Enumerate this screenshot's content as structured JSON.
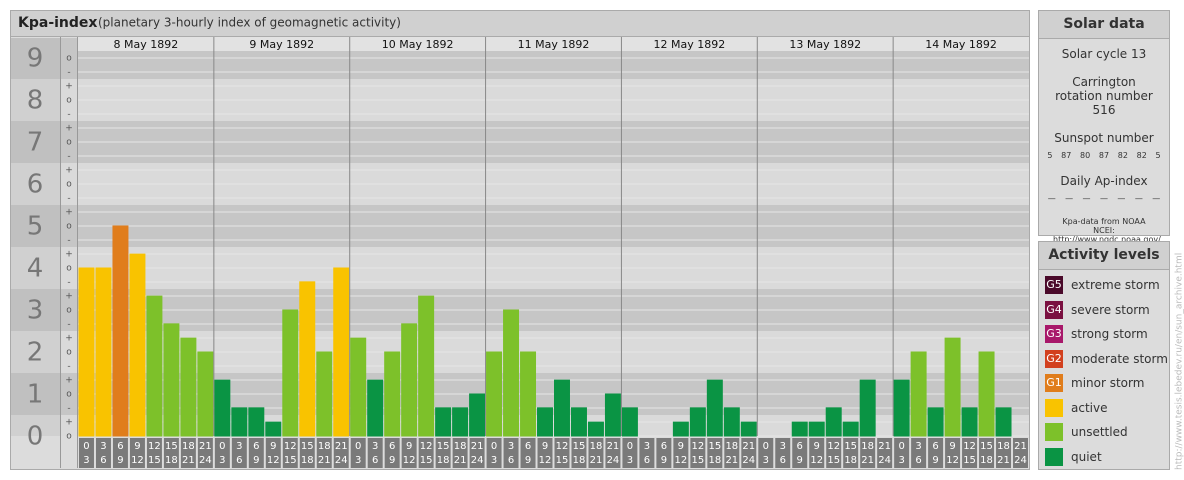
{
  "header": {
    "title": "Kpa-index",
    "subtitle": "(planetary 3-hourly index of geomagnetic activity)"
  },
  "chart_data": {
    "type": "bar",
    "days": [
      "8 May 1892",
      "9 May 1892",
      "10 May 1892",
      "11 May 1892",
      "12 May 1892",
      "13 May 1892",
      "14 May 1892"
    ],
    "hours": [
      "0",
      "3",
      "6",
      "9",
      "12",
      "15",
      "18",
      "21",
      "24"
    ],
    "ylim": [
      0,
      9.5
    ],
    "yticks": [
      0,
      1,
      2,
      3,
      4,
      5,
      6,
      7,
      8,
      9
    ],
    "sublabels": [
      "-",
      "o",
      "+"
    ],
    "values": [
      [
        4,
        4,
        5,
        4.33,
        3.33,
        2.67,
        2.33,
        2
      ],
      [
        1.33,
        0.67,
        0.67,
        0.33,
        3,
        3.67,
        2,
        4
      ],
      [
        2.33,
        1.33,
        2,
        2.67,
        3.33,
        0.67,
        0.67,
        1
      ],
      [
        2,
        3,
        2,
        0.67,
        1.33,
        0.67,
        0.33,
        1
      ],
      [
        0.67,
        0,
        0,
        0.33,
        0.67,
        1.33,
        0.67,
        0.33
      ],
      [
        0,
        0,
        0.33,
        0.33,
        0.67,
        0.33,
        1.33,
        0
      ],
      [
        1.33,
        2,
        0.67,
        2.33,
        0.67,
        2,
        0.67,
        0
      ]
    ],
    "colors": [
      [
        "#f9c300",
        "#f9c300",
        "#e07d1c",
        "#f9c300",
        "#7dc12a",
        "#7dc12a",
        "#7dc12a",
        "#7dc12a"
      ],
      [
        "#0a9444",
        "#0a9444",
        "#0a9444",
        "#0a9444",
        "#7dc12a",
        "#f9c300",
        "#7dc12a",
        "#f9c300"
      ],
      [
        "#7dc12a",
        "#0a9444",
        "#7dc12a",
        "#7dc12a",
        "#7dc12a",
        "#0a9444",
        "#0a9444",
        "#0a9444"
      ],
      [
        "#7dc12a",
        "#7dc12a",
        "#7dc12a",
        "#0a9444",
        "#0a9444",
        "#0a9444",
        "#0a9444",
        "#0a9444"
      ],
      [
        "#0a9444",
        "#0a9444",
        "#0a9444",
        "#0a9444",
        "#0a9444",
        "#0a9444",
        "#0a9444",
        "#0a9444"
      ],
      [
        "#0a9444",
        "#0a9444",
        "#0a9444",
        "#0a9444",
        "#0a9444",
        "#0a9444",
        "#0a9444",
        "#0a9444"
      ],
      [
        "#0a9444",
        "#7dc12a",
        "#0a9444",
        "#7dc12a",
        "#0a9444",
        "#7dc12a",
        "#0a9444",
        "#0a9444"
      ]
    ]
  },
  "solar": {
    "title": "Solar data",
    "cycle": "Solar cycle 13",
    "rotation": "Carrington rotation number 516",
    "sunspot_label": "Sunspot number",
    "sunspots": [
      "5",
      "87",
      "80",
      "87",
      "82",
      "82",
      "5"
    ],
    "ap_label": "Daily Ap-index",
    "ap": [
      "—",
      "—",
      "—",
      "—",
      "—",
      "—",
      "—"
    ],
    "source": "Kpa-data from NOAA NCEI: http://www.ngdc.noaa.gov/"
  },
  "levels": {
    "title": "Activity levels",
    "items": [
      {
        "badge": "G5",
        "label": "extreme storm",
        "color": "#4a0a2a"
      },
      {
        "badge": "G4",
        "label": "severe storm",
        "color": "#7a1040"
      },
      {
        "badge": "G3",
        "label": "strong storm",
        "color": "#a8186a"
      },
      {
        "badge": "G2",
        "label": "moderate storm",
        "color": "#d2401e"
      },
      {
        "badge": "G1",
        "label": "minor storm",
        "color": "#e07d1c"
      },
      {
        "label": "active",
        "color": "#f9c300"
      },
      {
        "label": "unsettled",
        "color": "#7dc12a"
      },
      {
        "label": "quiet",
        "color": "#0a9444"
      }
    ]
  },
  "watermark": "http://www.tesis.lebedev.ru/en/sun_archive.html"
}
